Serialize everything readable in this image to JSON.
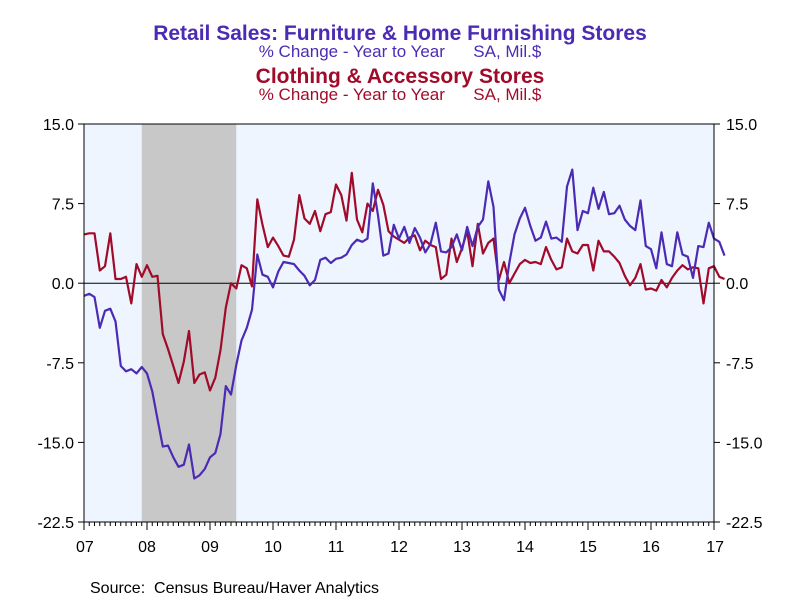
{
  "chart_data": {
    "type": "line",
    "title_lines": [
      {
        "text": "Retail Sales: Furniture & Home Furnishing Stores",
        "color": "#4b2bb3"
      },
      {
        "text": "% Change - Year to Year      SA, Mil.$",
        "color": "#4b2bb3"
      },
      {
        "text": "Clothing & Accessory Stores",
        "color": "#a10b2a"
      },
      {
        "text": "% Change - Year to Year      SA, Mil.$",
        "color": "#a10b2a"
      }
    ],
    "source": "Source:  Census Bureau/Haver Analytics",
    "x_start": "2007-01",
    "x_end": "2017-01",
    "xtick_labels": [
      {
        "date": "2007-01",
        "label": "07"
      },
      {
        "date": "2008-01",
        "label": "08"
      },
      {
        "date": "2009-01",
        "label": "09"
      },
      {
        "date": "2010-01",
        "label": "10"
      },
      {
        "date": "2011-01",
        "label": "11"
      },
      {
        "date": "2012-01",
        "label": "12"
      },
      {
        "date": "2013-01",
        "label": "13"
      },
      {
        "date": "2014-01",
        "label": "14"
      },
      {
        "date": "2015-01",
        "label": "15"
      },
      {
        "date": "2016-01",
        "label": "16"
      },
      {
        "date": "2017-01",
        "label": "17"
      }
    ],
    "ylim": [
      -22.5,
      15.0
    ],
    "yticks": [
      {
        "value": 15.0,
        "label": "15.0"
      },
      {
        "value": 7.5,
        "label": "7.5"
      },
      {
        "value": 0.0,
        "label": "0.0"
      },
      {
        "value": -7.5,
        "label": "-7.5"
      },
      {
        "value": -15.0,
        "label": "-15.0"
      },
      {
        "value": -22.5,
        "label": "-22.5"
      }
    ],
    "recession": {
      "start": "2007-12",
      "end": "2009-06"
    },
    "zero_line": true,
    "colors": {
      "furniture": "#4b2bb3",
      "clothing": "#a10b2a",
      "plot_bg": "#eef5ff",
      "recession": "#c8c8c8"
    },
    "series": [
      {
        "key": "furniture",
        "start": "2007-01",
        "values": [
          -1.2,
          -1.0,
          -1.3,
          -4.2,
          -2.6,
          -2.4,
          -3.6,
          -7.8,
          -8.3,
          -8.1,
          -8.5,
          -7.9,
          -8.5,
          -10.2,
          -12.8,
          -15.4,
          -15.3,
          -16.4,
          -17.3,
          -17.1,
          -15.2,
          -18.4,
          -18.1,
          -17.5,
          -16.4,
          -16.0,
          -14.2,
          -9.7,
          -10.5,
          -7.7,
          -5.4,
          -4.2,
          -2.5,
          2.7,
          0.8,
          0.6,
          -0.4,
          1.1,
          2.0,
          1.9,
          1.8,
          1.2,
          0.7,
          -0.2,
          0.3,
          2.2,
          2.4,
          1.9,
          2.3,
          2.4,
          2.7,
          3.6,
          4.1,
          3.9,
          4.2,
          9.4,
          6.4,
          2.6,
          2.8,
          5.5,
          4.2,
          5.3,
          3.8,
          5.2,
          4.3,
          2.9,
          3.7,
          5.7,
          3.0,
          2.9,
          3.4,
          4.6,
          3.1,
          5.3,
          3.5,
          5.3,
          6.0,
          9.6,
          7.2,
          -0.6,
          -1.6,
          1.9,
          4.6,
          6.1,
          7.1,
          5.4,
          4.0,
          4.3,
          5.8,
          4.2,
          4.3,
          3.9,
          9.1,
          10.7,
          5.0,
          6.8,
          6.6,
          9.0,
          7.0,
          8.6,
          6.5,
          6.6,
          7.3,
          6.0,
          5.4,
          5.0,
          7.8,
          3.5,
          3.2,
          1.4,
          4.8,
          1.8,
          1.6,
          4.8,
          2.7,
          2.5,
          0.5,
          3.5,
          3.4,
          5.7,
          4.2,
          3.9,
          2.6
        ]
      },
      {
        "key": "clothing",
        "start": "2007-01",
        "values": [
          4.6,
          4.7,
          4.7,
          1.2,
          1.6,
          4.7,
          0.4,
          0.4,
          0.6,
          -1.9,
          1.8,
          0.6,
          1.7,
          0.6,
          0.7,
          -4.8,
          -6.2,
          -7.8,
          -9.4,
          -7.4,
          -4.5,
          -9.4,
          -8.6,
          -8.4,
          -10.1,
          -8.9,
          -6.3,
          -2.3,
          0.0,
          -0.5,
          1.7,
          1.4,
          -0.3,
          7.9,
          5.5,
          3.4,
          4.3,
          3.5,
          2.6,
          2.5,
          4.1,
          8.3,
          6.1,
          5.6,
          6.8,
          4.9,
          6.5,
          6.7,
          9.3,
          8.3,
          5.9,
          10.4,
          6.0,
          4.8,
          7.5,
          6.8,
          8.8,
          7.4,
          4.9,
          4.4,
          4.1,
          3.8,
          4.3,
          4.5,
          3.1,
          4.0,
          3.6,
          3.4,
          0.4,
          0.8,
          4.2,
          2.0,
          3.3,
          4.9,
          1.6,
          5.6,
          2.8,
          3.8,
          4.2,
          0.3,
          2.0,
          0.0,
          0.9,
          1.8,
          2.2,
          1.9,
          2.0,
          1.8,
          3.4,
          2.2,
          1.3,
          1.5,
          4.2,
          3.0,
          2.8,
          3.6,
          3.6,
          1.2,
          4.0,
          3.0,
          3.0,
          2.5,
          1.9,
          0.7,
          -0.2,
          0.5,
          1.8,
          -0.6,
          -0.5,
          -0.7,
          0.3,
          -0.4,
          0.5,
          1.2,
          1.7,
          1.3,
          1.5,
          1.4,
          -1.9,
          1.4,
          1.6,
          0.6,
          0.4
        ]
      }
    ]
  }
}
